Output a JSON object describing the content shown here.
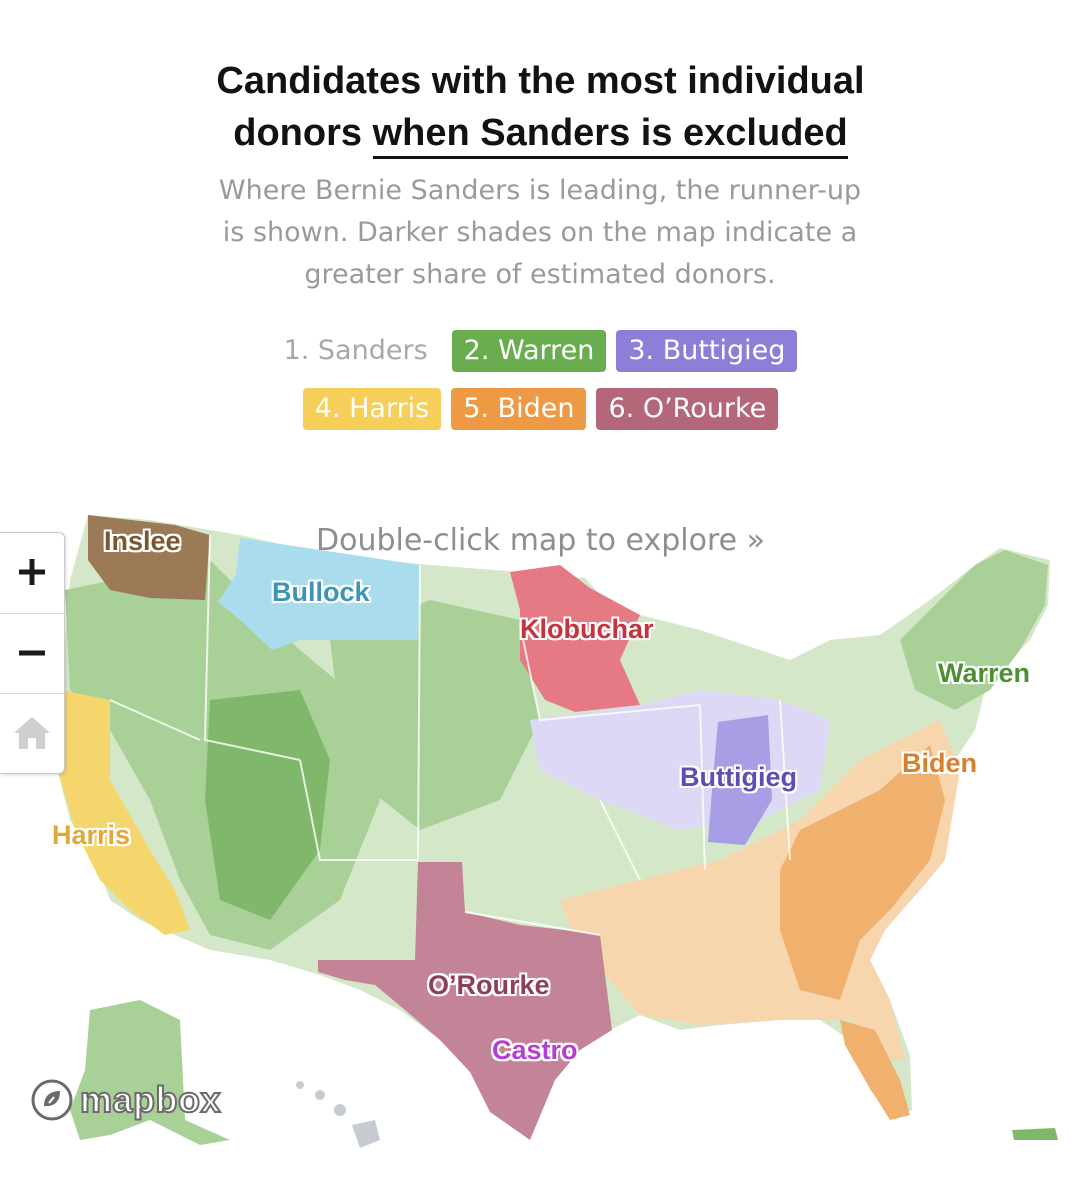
{
  "header": {
    "title_line1": "Candidates with the most individual",
    "title_line2_prefix": "donors ",
    "title_line2_underlined": "when Sanders is excluded",
    "subtitle_line1": "Where Bernie Sanders is leading, the runner-up",
    "subtitle_line2": "is shown. Darker shades on the map indicate a",
    "subtitle_line3": "greater share of estimated donors."
  },
  "legend": {
    "items": [
      {
        "label": "1. Sanders",
        "color": ""
      },
      {
        "label": "2. Warren",
        "color": "#6aad4e"
      },
      {
        "label": "3. Buttigieg",
        "color": "#8b7fd8"
      },
      {
        "label": "4. Harris",
        "color": "#f6cf58"
      },
      {
        "label": "5. Biden",
        "color": "#ee9a45"
      },
      {
        "label": "6. O’Rourke",
        "color": "#b46778"
      }
    ]
  },
  "map": {
    "hint": "Double-click map to explore »",
    "labels": {
      "inslee": "Inslee",
      "bullock": "Bullock",
      "klobuchar": "Klobuchar",
      "warren": "Warren",
      "buttigieg": "Buttigieg",
      "biden": "Biden",
      "harris": "Harris",
      "orourke": "O’Rourke",
      "castro": "Castro"
    },
    "label_colors": {
      "inslee": "#7a5730",
      "bullock": "#3d94b4",
      "klobuchar": "#c8323f",
      "warren": "#4e8f34",
      "buttigieg": "#5b4fb5",
      "biden": "#d9802c",
      "harris": "#e2a83a",
      "orourke": "#8e3f55",
      "castro": "#b53fd0"
    },
    "region_colors": {
      "warren_light": "#d4e8c9",
      "warren_mid": "#a9d197",
      "warren_dark": "#7fb86a",
      "buttigieg": "#a79ee6",
      "buttigieg_light": "#dcd8f5",
      "harris": "#f5d66c",
      "biden": "#f0b06e",
      "biden_light": "#f7d5ad",
      "orourke": "#c48497",
      "klobuchar": "#e57a85",
      "bullock": "#a9dcec",
      "inslee": "#9c7a58"
    },
    "controls": {
      "zoom_in_icon": "plus-icon",
      "zoom_out_icon": "minus-icon",
      "home_icon": "home-icon"
    },
    "attribution": "mapbox"
  }
}
